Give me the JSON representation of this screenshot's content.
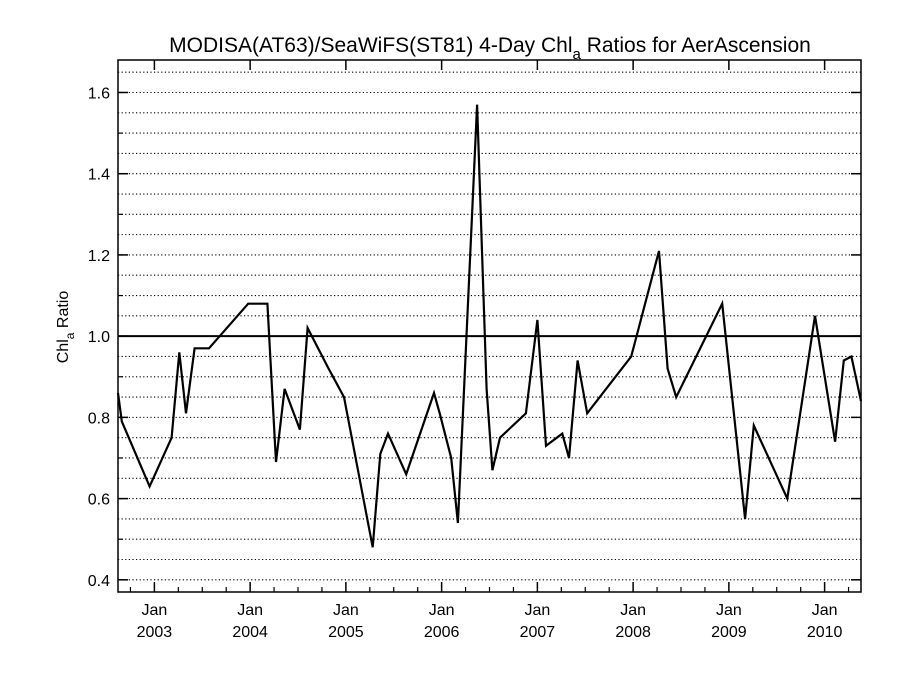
{
  "chart_data": {
    "type": "line",
    "title_parts": [
      "MODISA(AT63)/SeaWiFS(ST81) 4-Day Chl",
      "a",
      " Ratios for AerAscension"
    ],
    "ylabel_parts": [
      "Chl",
      "a",
      " Ratio"
    ],
    "xlabel": "",
    "ylim": [
      0.37,
      1.68
    ],
    "xlim": [
      2002.62,
      2010.38
    ],
    "grid": "horizontal dotted lines every 0.05",
    "reference_line": 1.0,
    "yticks": [
      0.4,
      0.6,
      0.8,
      1.0,
      1.2,
      1.4,
      1.6
    ],
    "ytick_labels": [
      "0.4",
      "0.6",
      "0.8",
      "1.0",
      "1.2",
      "1.4",
      "1.6"
    ],
    "xticks": [
      {
        "x": 2003.0,
        "month": "Jan",
        "year": "2003"
      },
      {
        "x": 2004.0,
        "month": "Jan",
        "year": "2004"
      },
      {
        "x": 2005.0,
        "month": "Jan",
        "year": "2005"
      },
      {
        "x": 2006.0,
        "month": "Jan",
        "year": "2006"
      },
      {
        "x": 2007.0,
        "month": "Jan",
        "year": "2007"
      },
      {
        "x": 2008.0,
        "month": "Jan",
        "year": "2008"
      },
      {
        "x": 2009.0,
        "month": "Jan",
        "year": "2009"
      },
      {
        "x": 2010.0,
        "month": "Jan",
        "year": "2010"
      }
    ],
    "series": [
      {
        "line_color": "#000000",
        "points": [
          [
            2002.62,
            0.86
          ],
          [
            2002.66,
            0.79
          ],
          [
            2002.95,
            0.63
          ],
          [
            2003.18,
            0.75
          ],
          [
            2003.26,
            0.96
          ],
          [
            2003.33,
            0.81
          ],
          [
            2003.42,
            0.97
          ],
          [
            2003.57,
            0.97
          ],
          [
            2003.98,
            1.08
          ],
          [
            2004.18,
            1.08
          ],
          [
            2004.27,
            0.69
          ],
          [
            2004.36,
            0.87
          ],
          [
            2004.52,
            0.77
          ],
          [
            2004.6,
            1.02
          ],
          [
            2004.82,
            0.92
          ],
          [
            2004.98,
            0.85
          ],
          [
            2005.28,
            0.48
          ],
          [
            2005.36,
            0.71
          ],
          [
            2005.44,
            0.76
          ],
          [
            2005.63,
            0.66
          ],
          [
            2005.92,
            0.86
          ],
          [
            2005.98,
            0.81
          ],
          [
            2006.1,
            0.7
          ],
          [
            2006.17,
            0.54
          ],
          [
            2006.37,
            1.57
          ],
          [
            2006.47,
            0.87
          ],
          [
            2006.53,
            0.67
          ],
          [
            2006.61,
            0.75
          ],
          [
            2006.88,
            0.81
          ],
          [
            2007.0,
            1.04
          ],
          [
            2007.09,
            0.73
          ],
          [
            2007.26,
            0.76
          ],
          [
            2007.33,
            0.7
          ],
          [
            2007.42,
            0.94
          ],
          [
            2007.52,
            0.81
          ],
          [
            2007.98,
            0.95
          ],
          [
            2008.27,
            1.21
          ],
          [
            2008.36,
            0.92
          ],
          [
            2008.45,
            0.85
          ],
          [
            2008.93,
            1.08
          ],
          [
            2009.17,
            0.55
          ],
          [
            2009.26,
            0.78
          ],
          [
            2009.61,
            0.6
          ],
          [
            2009.9,
            1.05
          ],
          [
            2010.11,
            0.74
          ],
          [
            2010.2,
            0.94
          ],
          [
            2010.28,
            0.95
          ],
          [
            2010.38,
            0.84
          ]
        ]
      }
    ]
  }
}
